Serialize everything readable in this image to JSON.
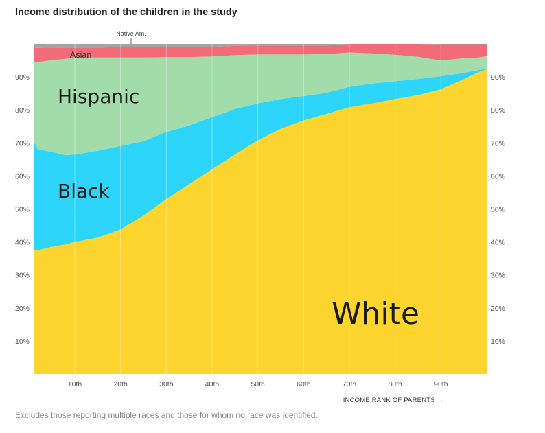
{
  "title": "Income distribution of the children in the study",
  "footnote": "Excludes those reporting multiple races and those for whom no race was identified.",
  "chart_data": {
    "type": "area",
    "stacked": true,
    "xlabel": "INCOME RANK OF PARENTS →",
    "xlim": [
      1,
      100
    ],
    "ylim": [
      0,
      100
    ],
    "x_ticks": [
      10,
      20,
      30,
      40,
      50,
      60,
      70,
      80,
      90
    ],
    "x_tick_labels": [
      "10th",
      "20th",
      "30th",
      "40th",
      "50th",
      "60th",
      "70th",
      "80th",
      "90th"
    ],
    "y_ticks": [
      10,
      20,
      30,
      40,
      50,
      60,
      70,
      80,
      90
    ],
    "y_tick_labels": [
      "10%",
      "20%",
      "30%",
      "40%",
      "50%",
      "60%",
      "70%",
      "80%",
      "90%"
    ],
    "x": [
      1,
      2,
      5,
      8,
      10,
      15,
      20,
      25,
      30,
      35,
      40,
      45,
      50,
      55,
      60,
      65,
      70,
      75,
      80,
      85,
      90,
      95,
      98,
      100
    ],
    "series": [
      {
        "name": "White",
        "color": "#fdd52e",
        "values": [
          37.5,
          37.5,
          38.5,
          39.3,
          40.0,
          41.3,
          43.8,
          48.0,
          53.0,
          57.5,
          62.0,
          66.5,
          70.8,
          74.3,
          76.8,
          78.8,
          80.8,
          82.0,
          83.3,
          84.5,
          86.3,
          89.3,
          91.3,
          92.3
        ]
      },
      {
        "name": "Black",
        "color": "#2ed5fa",
        "values": [
          33.0,
          30.5,
          28.8,
          27.0,
          26.5,
          26.3,
          25.3,
          22.5,
          20.3,
          17.8,
          15.8,
          13.8,
          11.2,
          9.0,
          7.4,
          6.4,
          6.2,
          6.0,
          5.4,
          4.9,
          3.9,
          1.9,
          0.7,
          0.3
        ]
      },
      {
        "name": "Hispanic",
        "color": "#a3dcab",
        "values": [
          24.0,
          26.5,
          27.8,
          29.2,
          29.3,
          28.3,
          26.8,
          25.4,
          22.7,
          20.7,
          18.4,
          16.3,
          14.8,
          13.5,
          12.6,
          11.7,
          10.4,
          9.1,
          8.0,
          6.7,
          4.8,
          4.5,
          3.8,
          3.7
        ]
      },
      {
        "name": "Asian",
        "color": "#f46b78",
        "values": [
          4.3,
          4.3,
          3.8,
          3.4,
          3.1,
          3.0,
          3.1,
          3.1,
          3.0,
          3.0,
          2.9,
          2.8,
          2.7,
          2.7,
          2.7,
          2.6,
          2.6,
          2.9,
          3.3,
          3.9,
          4.9,
          4.2,
          4.1,
          3.6
        ]
      },
      {
        "name": "Native Am.",
        "color": "#a4a4a4",
        "values": [
          1.2,
          1.2,
          1.1,
          1.1,
          1.1,
          1.1,
          1.0,
          1.0,
          1.0,
          1.0,
          0.9,
          0.6,
          0.5,
          0.5,
          0.5,
          0.5,
          0.5,
          0.5,
          0.5,
          0.5,
          0.5,
          0.4,
          0.4,
          0.4
        ]
      }
    ]
  }
}
